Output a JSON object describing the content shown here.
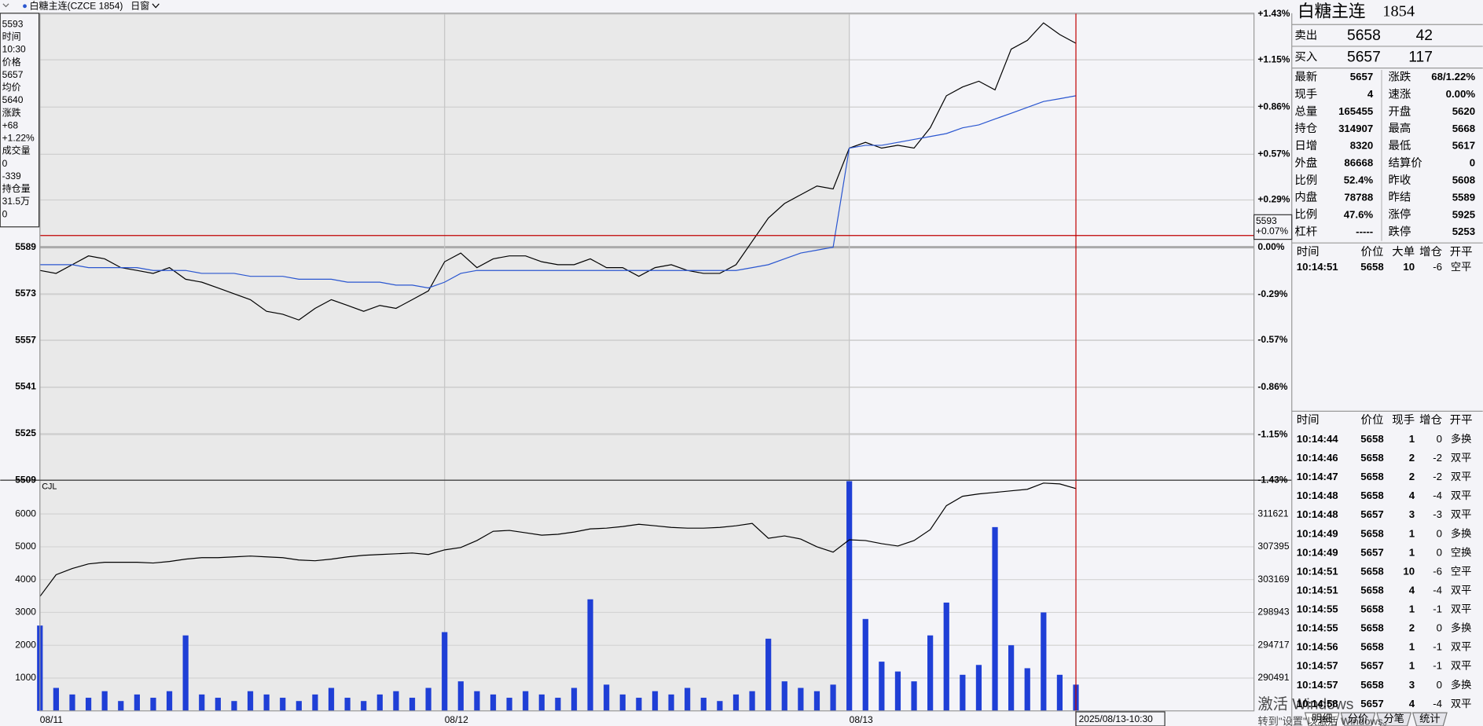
{
  "toolbar": {
    "symbol": "白糖主连(CZCE 1854)",
    "period": "日窗"
  },
  "info_box": [
    "5593",
    "时间",
    "10:30",
    "价格",
    "5657",
    "均价",
    "5640",
    "涨跌",
    "+68",
    "+1.22%",
    "成交量",
    "0",
    "-339",
    "持仓量",
    "31.5万",
    "0"
  ],
  "chart_data": [
    {
      "type": "line",
      "xlim": [
        0,
        75
      ],
      "xticks": [
        {
          "value": 0,
          "label": "08/11"
        },
        {
          "value": 25,
          "label": "08/12"
        },
        {
          "value": 50,
          "label": "08/13"
        }
      ],
      "ylim": [
        5509,
        5669
      ],
      "yticks": [
        5509,
        5525,
        5541,
        5557,
        5573,
        5589
      ],
      "y2lim": [
        -1.43,
        1.43
      ],
      "y2ticks": [
        {
          "value": 1.43,
          "label": "+1.43%"
        },
        {
          "value": 1.15,
          "label": "+1.15%"
        },
        {
          "value": 0.86,
          "label": "+0.86%"
        },
        {
          "value": 0.57,
          "label": "+0.57%"
        },
        {
          "value": 0.29,
          "label": "+0.29%"
        },
        {
          "value": 0,
          "label": "0.00%"
        },
        {
          "value": -0.29,
          "label": "-0.29%"
        },
        {
          "value": -0.57,
          "label": "-0.57%"
        },
        {
          "value": -0.86,
          "label": "-0.86%"
        },
        {
          "value": -1.15,
          "label": "-1.15%"
        },
        {
          "value": -1.43,
          "label": "-1.43%"
        }
      ],
      "grid": true,
      "series": [
        {
          "color": "#000000",
          "values": [
            5581,
            5580,
            5583,
            5586,
            5585,
            5582,
            5581,
            5580,
            5582,
            5578,
            5577,
            5575,
            5573,
            5571,
            5567,
            5566,
            5564,
            5568,
            5571,
            5569,
            5567,
            5569,
            5568,
            5571,
            5574,
            5584,
            5587,
            5582,
            5585,
            5586,
            5586,
            5584,
            5583,
            5583,
            5585,
            5582,
            5582,
            5579,
            5582,
            5583,
            5581,
            5580,
            5580,
            5583,
            5591,
            5599,
            5604,
            5607,
            5610,
            5609,
            5623,
            5625,
            5623,
            5624,
            5623,
            5630,
            5641,
            5644,
            5646,
            5643,
            5657,
            5660,
            5666,
            5662,
            5659
          ]
        },
        {
          "color": "#2a56d0",
          "values": [
            5583,
            5583,
            5583,
            5582,
            5582,
            5582,
            5582,
            5581,
            5581,
            5581,
            5580,
            5580,
            5580,
            5579,
            5579,
            5579,
            5578,
            5578,
            5578,
            5577,
            5577,
            5577,
            5576,
            5576,
            5575,
            5577,
            5580,
            5581,
            5581,
            5581,
            5581,
            5581,
            5581,
            5581,
            5581,
            5581,
            5581,
            5581,
            5581,
            5581,
            5581,
            5581,
            5581,
            5581,
            5582,
            5583,
            5585,
            5587,
            5588,
            5589,
            5623,
            5624,
            5624,
            5625,
            5626,
            5627,
            5628,
            5630,
            5631,
            5633,
            5635,
            5637,
            5639,
            5640,
            5641
          ]
        }
      ]
    },
    {
      "type": "bar",
      "label": "CJL",
      "xlim": [
        0,
        75
      ],
      "ylim": [
        0,
        7000
      ],
      "yticks": [
        1000,
        2000,
        3000,
        4000,
        5000,
        6000
      ],
      "y2lim": [
        286265,
        315847
      ],
      "y2ticks": [
        290491,
        294717,
        298943,
        303169,
        307395,
        311621
      ],
      "series": [
        {
          "color": "#1f3fd6",
          "values": [
            2600,
            700,
            500,
            400,
            600,
            300,
            500,
            400,
            600,
            2300,
            500,
            400,
            300,
            600,
            500,
            400,
            300,
            500,
            700,
            400,
            300,
            500,
            600,
            400,
            700,
            2400,
            900,
            600,
            500,
            400,
            600,
            500,
            400,
            700,
            3400,
            800,
            500,
            400,
            600,
            500,
            700,
            400,
            300,
            500,
            600,
            2200,
            900,
            700,
            600,
            800,
            7000,
            2800,
            1500,
            1200,
            900,
            2300,
            3300,
            1100,
            1400,
            5600,
            2000,
            1300,
            3000,
            1100,
            800
          ]
        },
        {
          "color": "#000000",
          "axis": "y2",
          "values": [
            301000,
            303800,
            304600,
            305200,
            305400,
            305400,
            305400,
            305300,
            305500,
            305800,
            306000,
            306000,
            306100,
            306200,
            306100,
            306000,
            305700,
            305600,
            305800,
            306100,
            306300,
            306400,
            306500,
            306600,
            306400,
            307000,
            307300,
            308200,
            309400,
            309500,
            309200,
            308900,
            309000,
            309300,
            309700,
            309800,
            310000,
            310300,
            310100,
            309900,
            309800,
            309800,
            309900,
            310100,
            310400,
            308500,
            308800,
            308400,
            307400,
            306700,
            308300,
            308200,
            307800,
            307500,
            308200,
            309600,
            312700,
            313900,
            314200,
            314400,
            314600,
            314800,
            315600,
            315500,
            314900
          ]
        }
      ]
    }
  ],
  "cursor": {
    "price": 5593,
    "percent_label": "+0.07%",
    "time_label": "2025/08/13-10:30",
    "color": "#c00000"
  },
  "quote": {
    "name": "白糖主连",
    "code": "1854",
    "ask": {
      "label": "卖出",
      "price": "5658",
      "volume": "42"
    },
    "bid": {
      "label": "买入",
      "price": "5657",
      "volume": "117"
    },
    "stats": [
      [
        {
          "label": "最新",
          "value": "5657",
          "color": "#e00000"
        },
        {
          "label": "涨跌",
          "value": "68/1.22%",
          "color": "#e00000"
        }
      ],
      [
        {
          "label": "现手",
          "value": "4",
          "color": "#1a3fb0"
        },
        {
          "label": "速涨",
          "value": "0.00%",
          "color": "#000000"
        }
      ],
      [
        {
          "label": "总量",
          "value": "165455",
          "color": "#1a3fb0"
        },
        {
          "label": "开盘",
          "value": "5620",
          "color": "#e00000"
        }
      ],
      [
        {
          "label": "持仓",
          "value": "314907",
          "color": "#1a3fb0"
        },
        {
          "label": "最高",
          "value": "5668",
          "color": "#e00000"
        }
      ],
      [
        {
          "label": "日增",
          "value": "8320",
          "color": "#1a3fb0"
        },
        {
          "label": "最低",
          "value": "5617",
          "color": "#e00000"
        }
      ],
      [
        {
          "label": "外盘",
          "value": "86668",
          "color": "#1a3fb0"
        },
        {
          "label": "结算价",
          "value": "0",
          "color": "#000000"
        }
      ],
      [
        {
          "label": "比例",
          "value": "52.4%",
          "color": "#1a3fb0"
        },
        {
          "label": "昨收",
          "value": "5608",
          "color": "#000000"
        }
      ],
      [
        {
          "label": "内盘",
          "value": "78788",
          "color": "#1a3fb0"
        },
        {
          "label": "昨结",
          "value": "5589",
          "color": "#000000"
        }
      ],
      [
        {
          "label": "比例",
          "value": "47.6%",
          "color": "#1a3fb0"
        },
        {
          "label": "涨停",
          "value": "5925",
          "color": "#e00000"
        }
      ],
      [
        {
          "label": "杠杆",
          "value": "-----",
          "color": "#1a3fb0"
        },
        {
          "label": "跌停",
          "value": "5253",
          "color": "#008000"
        }
      ]
    ]
  },
  "big_orders": {
    "header": [
      "时间",
      "价位",
      "大单",
      "增仓",
      "开平"
    ],
    "rows": [
      [
        "10:14:51",
        "5658",
        "10",
        "-6",
        "空平"
      ]
    ]
  },
  "ticks": {
    "header": [
      "时间",
      "价位",
      "现手",
      "增仓",
      "开平"
    ],
    "rows": [
      [
        "10:14:44",
        "5658",
        "1",
        "0",
        "多换"
      ],
      [
        "10:14:46",
        "5658",
        "2",
        "-2",
        "双平"
      ],
      [
        "10:14:47",
        "5658",
        "2",
        "-2",
        "双平"
      ],
      [
        "10:14:48",
        "5658",
        "4",
        "-4",
        "双平"
      ],
      [
        "10:14:48",
        "5657",
        "3",
        "-3",
        "双平"
      ],
      [
        "10:14:49",
        "5658",
        "1",
        "0",
        "多换"
      ],
      [
        "10:14:49",
        "5657",
        "1",
        "0",
        "空换"
      ],
      [
        "10:14:51",
        "5658",
        "10",
        "-6",
        "空平"
      ],
      [
        "10:14:51",
        "5658",
        "4",
        "-4",
        "双平"
      ],
      [
        "10:14:55",
        "5658",
        "1",
        "-1",
        "双平"
      ],
      [
        "10:14:55",
        "5658",
        "2",
        "0",
        "多换"
      ],
      [
        "10:14:56",
        "5658",
        "1",
        "-1",
        "双平"
      ],
      [
        "10:14:57",
        "5657",
        "1",
        "-1",
        "双平"
      ],
      [
        "10:14:57",
        "5658",
        "3",
        "0",
        "多换"
      ],
      [
        "10:14:58",
        "5657",
        "4",
        "-4",
        "双平"
      ]
    ]
  },
  "tabs": [
    "明细",
    "分价",
    "分笔",
    "统计"
  ],
  "watermark": [
    "激活 Windows",
    "转到\"设置\"以激活 Windows。"
  ]
}
